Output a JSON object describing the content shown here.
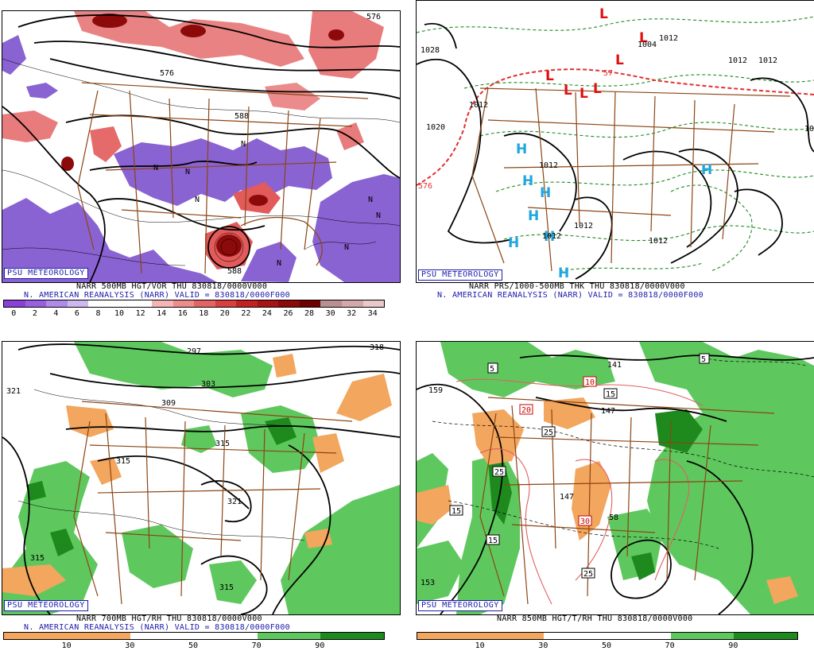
{
  "panels": {
    "p500": {
      "org_label": "PSU METEOROLOGY",
      "line1": "NARR 500MB HGT/VOR THU 830818/0000V000",
      "line2": "N. AMERICAN REANALYSIS (NARR) VALID = 830818/0000F000",
      "colorbar": {
        "ticks": [
          "0",
          "2",
          "4",
          "6",
          "8",
          "10",
          "12",
          "14",
          "16",
          "18",
          "20",
          "22",
          "24",
          "26",
          "28",
          "30",
          "32",
          "34"
        ],
        "colors": [
          "#8a3fd6",
          "#9a5ee0",
          "#b08ae8",
          "#cdb8f0",
          "#ffffff",
          "#ffffff",
          "#ffffff",
          "#f4b5b5",
          "#ee8c8c",
          "#e46464",
          "#d84040",
          "#c22222",
          "#a81414",
          "#8c0a0a",
          "#6e0000",
          "#b89090",
          "#d4a8a8",
          "#e8c8c8"
        ]
      },
      "contour_labels": [
        "576",
        "576",
        "588",
        "588"
      ]
    },
    "pthk": {
      "org_label": "PSU METEOROLOGY",
      "line1": "NARR PRS/1000-500MB THK THU 830818/0000V000",
      "line2": "N. AMERICAN REANALYSIS (NARR) VALID = 830818/0000F000",
      "contour_labels": [
        "1028",
        "1004",
        "1012",
        "1012",
        "1020",
        "1012",
        "1012",
        "1012",
        "1012",
        "1012",
        "1012",
        "10",
        "576",
        "57"
      ],
      "high_symbol": "H",
      "low_symbol": "L"
    },
    "p700": {
      "org_label": "PSU METEOROLOGY",
      "line1": "NARR 700MB HGT/RH THU 830818/0000V000",
      "line2": "N. AMERICAN REANALYSIS (NARR) VALID = 830818/0000F000",
      "colorbar": {
        "ticks": [
          "10",
          "30",
          "50",
          "70",
          "90"
        ],
        "colors": [
          "#f2a65e",
          "#f2a65e",
          "#ffffff",
          "#ffffff",
          "#5ec85e",
          "#1e8a1e"
        ]
      },
      "contour_labels": [
        "321",
        "297",
        "309",
        "303",
        "315",
        "315",
        "321",
        "315",
        "315",
        "318"
      ]
    },
    "p850": {
      "org_label": "PSU METEOROLOGY",
      "line1": "NARR 850MB HGT/T/RH THU 830818/0000V000",
      "line2": "",
      "colorbar": {
        "ticks": [
          "10",
          "30",
          "50",
          "70",
          "90"
        ],
        "colors": [
          "#f2a65e",
          "#f2a65e",
          "#ffffff",
          "#ffffff",
          "#5ec85e",
          "#1e8a1e"
        ]
      },
      "contour_labels": [
        "159",
        "141",
        "147",
        "147",
        "153",
        "58",
        "5",
        "5",
        "10",
        "15",
        "20",
        "25",
        "25",
        "15",
        "15",
        "30",
        "25"
      ]
    }
  },
  "colors": {
    "vort_neg": "#8a63d2",
    "vort_pos": "#e25a5a",
    "vort_max": "#8c0a0a",
    "rh_moist": "#3cb43c",
    "rh_dry": "#f2a65e",
    "border": "#8b4513",
    "heights": "#000000",
    "thickness": "#1e8a1e",
    "freezing_isotherm": "#e03030",
    "high_color": "#1fa6e0",
    "low_color": "#e01010",
    "label_blue": "#1a1aaa"
  }
}
